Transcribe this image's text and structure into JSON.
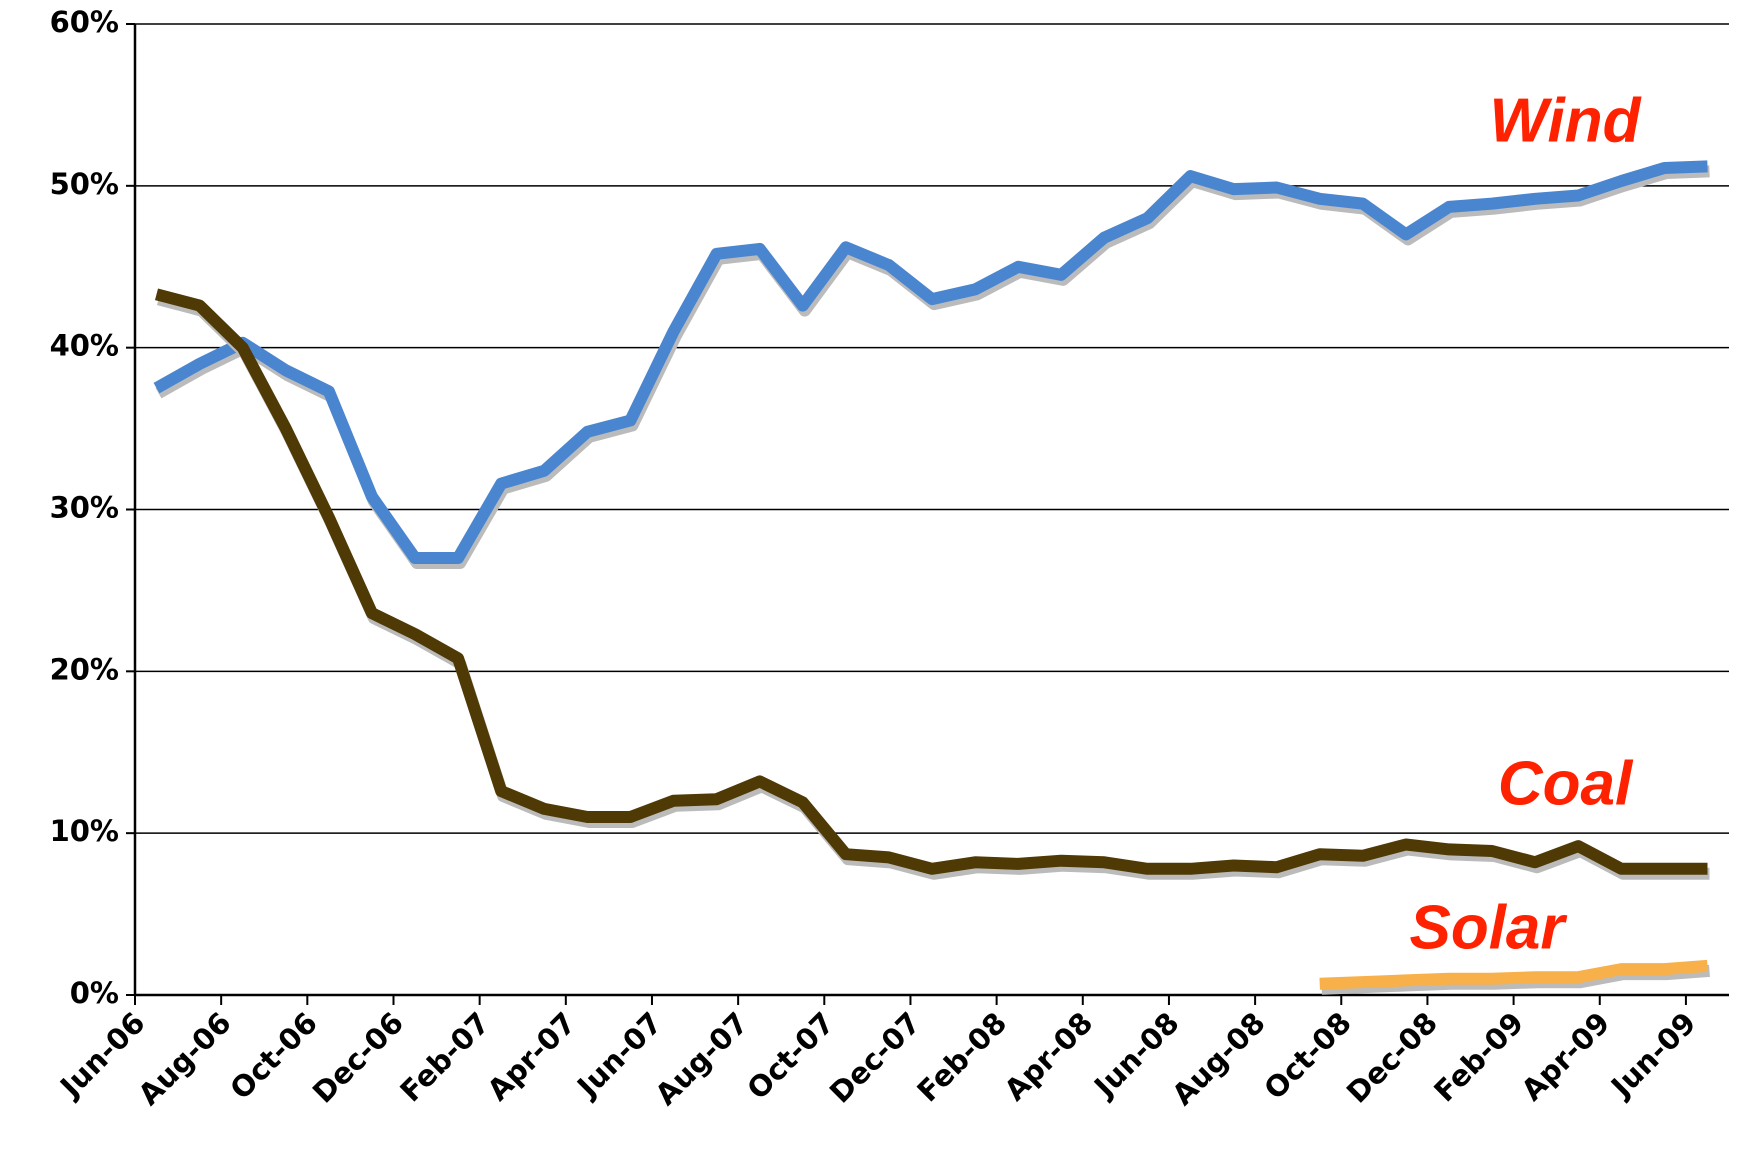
{
  "chart_data": {
    "type": "line",
    "categories": [
      "Jun-06",
      null,
      "Aug-06",
      null,
      "Oct-06",
      null,
      "Dec-06",
      null,
      "Feb-07",
      null,
      "Apr-07",
      null,
      "Jun-07",
      null,
      "Aug-07",
      null,
      "Oct-07",
      null,
      "Dec-07",
      null,
      "Feb-08",
      null,
      "Apr-08",
      null,
      "Jun-08",
      null,
      "Aug-08",
      null,
      "Oct-08",
      null,
      "Dec-08",
      null,
      "Feb-09",
      null,
      "Apr-09",
      null,
      "Jun-09"
    ],
    "series": [
      {
        "name": "Wind",
        "color": "#4a86d0",
        "values": [
          37.5,
          39,
          40.3,
          38.6,
          37.3,
          30.8,
          27,
          27,
          31.6,
          32.4,
          34.8,
          35.5,
          41,
          45.8,
          46.1,
          42.6,
          46.2,
          45.1,
          43,
          43.6,
          45,
          44.5,
          46.8,
          48,
          50.6,
          49.8,
          49.9,
          49.2,
          48.9,
          47,
          48.7,
          48.9,
          49.2,
          49.4,
          50.3,
          51.1,
          51.2
        ]
      },
      {
        "name": "Coal",
        "color": "#4f3a06",
        "values": [
          43.3,
          42.6,
          40,
          35,
          29.5,
          23.6,
          22.3,
          20.8,
          12.6,
          11.5,
          11,
          11,
          12,
          12.1,
          13.2,
          11.9,
          8.7,
          8.5,
          7.8,
          8.2,
          8.1,
          8.3,
          8.2,
          7.8,
          7.8,
          8,
          7.9,
          8.7,
          8.6,
          9.3,
          9,
          8.9,
          8.2,
          9.2,
          7.8,
          7.8,
          7.8
        ]
      },
      {
        "name": "Solar",
        "color": "#f8b04a",
        "values": [
          null,
          null,
          null,
          null,
          null,
          null,
          null,
          null,
          null,
          null,
          null,
          null,
          null,
          null,
          null,
          null,
          null,
          null,
          null,
          null,
          null,
          null,
          null,
          null,
          null,
          null,
          null,
          0.7,
          0.8,
          0.9,
          1.0,
          1.0,
          1.1,
          1.1,
          1.6,
          1.6,
          1.8
        ]
      }
    ],
    "ylim": [
      0,
      60
    ],
    "yticks": [
      {
        "value": 0,
        "label": "0%"
      },
      {
        "value": 10,
        "label": "10%"
      },
      {
        "value": 20,
        "label": "20%"
      },
      {
        "value": 30,
        "label": "30%"
      },
      {
        "value": 40,
        "label": "40%"
      },
      {
        "value": 50,
        "label": "50%"
      },
      {
        "value": 60,
        "label": "60%"
      }
    ],
    "grid": true
  }
}
